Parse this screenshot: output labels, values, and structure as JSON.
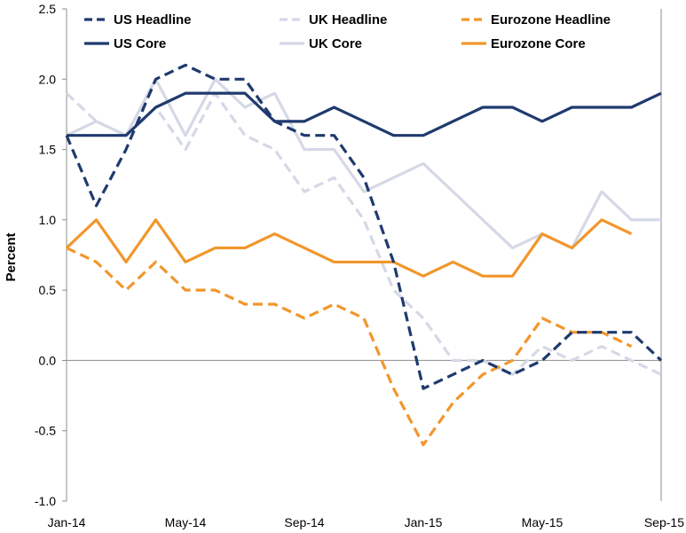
{
  "chart_data": {
    "type": "line",
    "title": "",
    "xlabel": "",
    "ylabel": "Percent",
    "ylim": [
      -1.0,
      2.5
    ],
    "yticks": [
      "-1.0",
      "-0.5",
      "0.0",
      "0.5",
      "1.0",
      "1.5",
      "2.0",
      "2.5"
    ],
    "ytick_values": [
      -1.0,
      -0.5,
      0.0,
      0.5,
      1.0,
      1.5,
      2.0,
      2.5
    ],
    "x": [
      "Jan-14",
      "Feb-14",
      "Mar-14",
      "Apr-14",
      "May-14",
      "Jun-14",
      "Jul-14",
      "Aug-14",
      "Sep-14",
      "Oct-14",
      "Nov-14",
      "Dec-14",
      "Jan-15",
      "Feb-15",
      "Mar-15",
      "Apr-15",
      "May-15",
      "Jun-15",
      "Jul-15",
      "Aug-15",
      "Sep-15"
    ],
    "xtick_labels": [
      "Jan-14",
      "May-14",
      "Sep-14",
      "Jan-15",
      "May-15",
      "Sep-15"
    ],
    "xtick_indices": [
      0,
      4,
      8,
      12,
      16,
      20
    ],
    "grid": false,
    "legend_position": "top",
    "series": [
      {
        "name": "US Headline",
        "color": "#1f3a6e",
        "dashed": true,
        "values": [
          1.6,
          1.1,
          1.5,
          2.0,
          2.1,
          2.0,
          2.0,
          1.7,
          1.6,
          1.6,
          1.3,
          0.7,
          -0.2,
          -0.1,
          0.0,
          -0.1,
          0.0,
          0.2,
          0.2,
          0.2,
          0.0
        ]
      },
      {
        "name": "UK Headline",
        "color": "#d5d8e6",
        "dashed": true,
        "values": [
          1.9,
          1.7,
          1.6,
          1.8,
          1.5,
          1.9,
          1.6,
          1.5,
          1.2,
          1.3,
          1.0,
          0.5,
          0.3,
          0.0,
          0.0,
          -0.1,
          0.1,
          0.0,
          0.1,
          0.0,
          -0.1
        ]
      },
      {
        "name": "Eurozone Headline",
        "color": "#f2962b",
        "dashed": true,
        "values": [
          0.8,
          0.7,
          0.5,
          0.7,
          0.5,
          0.5,
          0.4,
          0.4,
          0.3,
          0.4,
          0.3,
          -0.2,
          -0.6,
          -0.3,
          -0.1,
          0.0,
          0.3,
          0.2,
          0.2,
          0.1,
          null
        ]
      },
      {
        "name": "US Core",
        "color": "#1f3a6e",
        "dashed": false,
        "values": [
          1.6,
          1.6,
          1.6,
          1.8,
          1.9,
          1.9,
          1.9,
          1.7,
          1.7,
          1.8,
          1.7,
          1.6,
          1.6,
          1.7,
          1.8,
          1.8,
          1.7,
          1.8,
          1.8,
          1.8,
          1.9
        ]
      },
      {
        "name": "UK Core",
        "color": "#d5d8e6",
        "dashed": false,
        "values": [
          1.6,
          1.7,
          1.6,
          2.0,
          1.6,
          2.0,
          1.8,
          1.9,
          1.5,
          1.5,
          1.2,
          1.3,
          1.4,
          1.2,
          1.0,
          0.8,
          0.9,
          0.8,
          1.2,
          1.0,
          1.0
        ]
      },
      {
        "name": "Eurozone Core",
        "color": "#f2962b",
        "dashed": false,
        "values": [
          0.8,
          1.0,
          0.7,
          1.0,
          0.7,
          0.8,
          0.8,
          0.9,
          0.8,
          0.7,
          0.7,
          0.7,
          0.6,
          0.7,
          0.6,
          0.6,
          0.9,
          0.8,
          1.0,
          0.9,
          null
        ]
      }
    ]
  }
}
